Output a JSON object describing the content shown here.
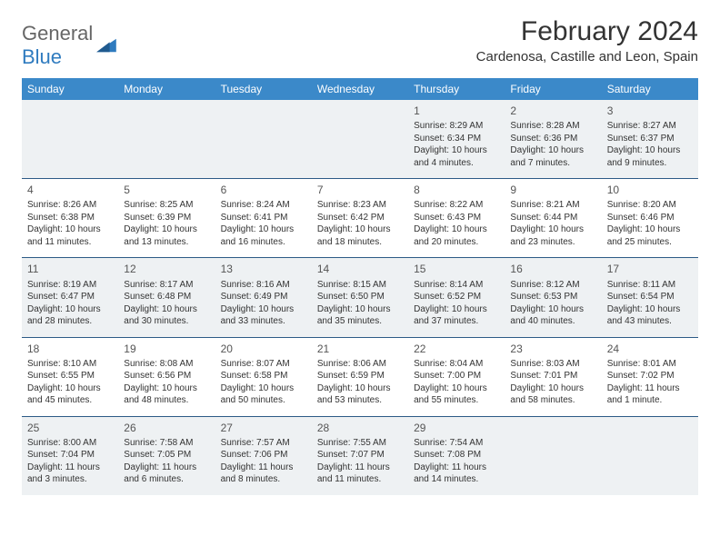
{
  "brand": {
    "part1": "General",
    "part2": "Blue"
  },
  "title": "February 2024",
  "location": "Cardenosa, Castille and Leon, Spain",
  "colors": {
    "header_bg": "#3b89c9",
    "row_border": "#2c5a86",
    "shaded_bg": "#eef1f3",
    "text": "#333333",
    "brand_gray": "#666666",
    "brand_blue": "#2f7bbf"
  },
  "typography": {
    "title_fontsize": 30,
    "location_fontsize": 15,
    "header_fontsize": 12,
    "daynum_fontsize": 12,
    "cell_fontsize": 10
  },
  "daysOfWeek": [
    "Sunday",
    "Monday",
    "Tuesday",
    "Wednesday",
    "Thursday",
    "Friday",
    "Saturday"
  ],
  "weeks": [
    [
      {
        "empty": true
      },
      {
        "empty": true
      },
      {
        "empty": true
      },
      {
        "empty": true
      },
      {
        "n": "1",
        "sr": "8:29 AM",
        "ss": "6:34 PM",
        "dl": "10 hours and 4 minutes."
      },
      {
        "n": "2",
        "sr": "8:28 AM",
        "ss": "6:36 PM",
        "dl": "10 hours and 7 minutes."
      },
      {
        "n": "3",
        "sr": "8:27 AM",
        "ss": "6:37 PM",
        "dl": "10 hours and 9 minutes."
      }
    ],
    [
      {
        "n": "4",
        "sr": "8:26 AM",
        "ss": "6:38 PM",
        "dl": "10 hours and 11 minutes."
      },
      {
        "n": "5",
        "sr": "8:25 AM",
        "ss": "6:39 PM",
        "dl": "10 hours and 13 minutes."
      },
      {
        "n": "6",
        "sr": "8:24 AM",
        "ss": "6:41 PM",
        "dl": "10 hours and 16 minutes."
      },
      {
        "n": "7",
        "sr": "8:23 AM",
        "ss": "6:42 PM",
        "dl": "10 hours and 18 minutes."
      },
      {
        "n": "8",
        "sr": "8:22 AM",
        "ss": "6:43 PM",
        "dl": "10 hours and 20 minutes."
      },
      {
        "n": "9",
        "sr": "8:21 AM",
        "ss": "6:44 PM",
        "dl": "10 hours and 23 minutes."
      },
      {
        "n": "10",
        "sr": "8:20 AM",
        "ss": "6:46 PM",
        "dl": "10 hours and 25 minutes."
      }
    ],
    [
      {
        "n": "11",
        "sr": "8:19 AM",
        "ss": "6:47 PM",
        "dl": "10 hours and 28 minutes."
      },
      {
        "n": "12",
        "sr": "8:17 AM",
        "ss": "6:48 PM",
        "dl": "10 hours and 30 minutes."
      },
      {
        "n": "13",
        "sr": "8:16 AM",
        "ss": "6:49 PM",
        "dl": "10 hours and 33 minutes."
      },
      {
        "n": "14",
        "sr": "8:15 AM",
        "ss": "6:50 PM",
        "dl": "10 hours and 35 minutes."
      },
      {
        "n": "15",
        "sr": "8:14 AM",
        "ss": "6:52 PM",
        "dl": "10 hours and 37 minutes."
      },
      {
        "n": "16",
        "sr": "8:12 AM",
        "ss": "6:53 PM",
        "dl": "10 hours and 40 minutes."
      },
      {
        "n": "17",
        "sr": "8:11 AM",
        "ss": "6:54 PM",
        "dl": "10 hours and 43 minutes."
      }
    ],
    [
      {
        "n": "18",
        "sr": "8:10 AM",
        "ss": "6:55 PM",
        "dl": "10 hours and 45 minutes."
      },
      {
        "n": "19",
        "sr": "8:08 AM",
        "ss": "6:56 PM",
        "dl": "10 hours and 48 minutes."
      },
      {
        "n": "20",
        "sr": "8:07 AM",
        "ss": "6:58 PM",
        "dl": "10 hours and 50 minutes."
      },
      {
        "n": "21",
        "sr": "8:06 AM",
        "ss": "6:59 PM",
        "dl": "10 hours and 53 minutes."
      },
      {
        "n": "22",
        "sr": "8:04 AM",
        "ss": "7:00 PM",
        "dl": "10 hours and 55 minutes."
      },
      {
        "n": "23",
        "sr": "8:03 AM",
        "ss": "7:01 PM",
        "dl": "10 hours and 58 minutes."
      },
      {
        "n": "24",
        "sr": "8:01 AM",
        "ss": "7:02 PM",
        "dl": "11 hours and 1 minute."
      }
    ],
    [
      {
        "n": "25",
        "sr": "8:00 AM",
        "ss": "7:04 PM",
        "dl": "11 hours and 3 minutes."
      },
      {
        "n": "26",
        "sr": "7:58 AM",
        "ss": "7:05 PM",
        "dl": "11 hours and 6 minutes."
      },
      {
        "n": "27",
        "sr": "7:57 AM",
        "ss": "7:06 PM",
        "dl": "11 hours and 8 minutes."
      },
      {
        "n": "28",
        "sr": "7:55 AM",
        "ss": "7:07 PM",
        "dl": "11 hours and 11 minutes."
      },
      {
        "n": "29",
        "sr": "7:54 AM",
        "ss": "7:08 PM",
        "dl": "11 hours and 14 minutes."
      },
      {
        "empty": true
      },
      {
        "empty": true
      }
    ]
  ],
  "labels": {
    "sunrise": "Sunrise: ",
    "sunset": "Sunset: ",
    "daylight": "Daylight: "
  }
}
